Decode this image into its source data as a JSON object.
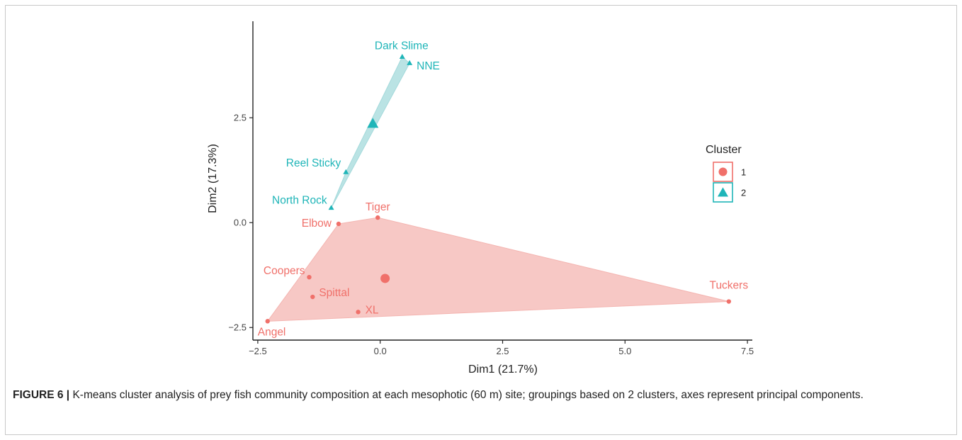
{
  "figure": {
    "label": "FIGURE 6 |",
    "caption": " K-means cluster analysis of prey fish community composition at each mesophotic (60 m) site; groupings based on 2 clusters, axes represent principal components."
  },
  "chart_data": {
    "type": "scatter",
    "xlabel": "Dim1 (21.7%)",
    "ylabel": "Dim2 (17.3%)",
    "xlim": [
      -2.6,
      7.6
    ],
    "ylim": [
      -2.8,
      4.8
    ],
    "xticks": [
      -2.5,
      0.0,
      2.5,
      5.0,
      7.5
    ],
    "xtick_labels": [
      "−2.5",
      "0.0",
      "2.5",
      "5.0",
      "7.5"
    ],
    "yticks": [
      -2.5,
      0.0,
      2.5
    ],
    "ytick_labels": [
      "−2.5",
      "0.0",
      "2.5"
    ],
    "grid": false,
    "legend": {
      "title": "Cluster",
      "position": "right",
      "entries": [
        {
          "label": "1",
          "shape": "circle",
          "color": "#F0706A"
        },
        {
          "label": "2",
          "shape": "triangle",
          "color": "#1FB5B8"
        }
      ]
    },
    "clusters": [
      {
        "name": "1",
        "color": "#F0706A",
        "hull_fill": "#F4B5B1",
        "centroid": {
          "x": 0.1,
          "y": -1.33
        },
        "points": [
          {
            "label": "Tiger",
            "x": -0.05,
            "y": 0.12
          },
          {
            "label": "Elbow",
            "x": -0.85,
            "y": -0.03
          },
          {
            "label": "Coopers",
            "x": -1.45,
            "y": -1.3
          },
          {
            "label": "Spittal",
            "x": -1.38,
            "y": -1.77
          },
          {
            "label": "XL",
            "x": -0.45,
            "y": -2.13
          },
          {
            "label": "Angel",
            "x": -2.3,
            "y": -2.35
          },
          {
            "label": "Tuckers",
            "x": 7.12,
            "y": -1.88
          }
        ],
        "hull": [
          "Angel",
          "Elbow",
          "Tiger",
          "Tuckers"
        ]
      },
      {
        "name": "2",
        "color": "#1FB5B8",
        "hull_fill": "#A3D9DB",
        "centroid": {
          "x": -0.15,
          "y": 2.35
        },
        "points": [
          {
            "label": "Dark Slime",
            "x": 0.45,
            "y": 3.95
          },
          {
            "label": "NNE",
            "x": 0.6,
            "y": 3.8
          },
          {
            "label": "Reel Sticky",
            "x": -0.7,
            "y": 1.2
          },
          {
            "label": "North Rock",
            "x": -1.0,
            "y": 0.35
          }
        ],
        "hull": [
          "North Rock",
          "Reel Sticky",
          "Dark Slime",
          "NNE"
        ]
      }
    ]
  }
}
